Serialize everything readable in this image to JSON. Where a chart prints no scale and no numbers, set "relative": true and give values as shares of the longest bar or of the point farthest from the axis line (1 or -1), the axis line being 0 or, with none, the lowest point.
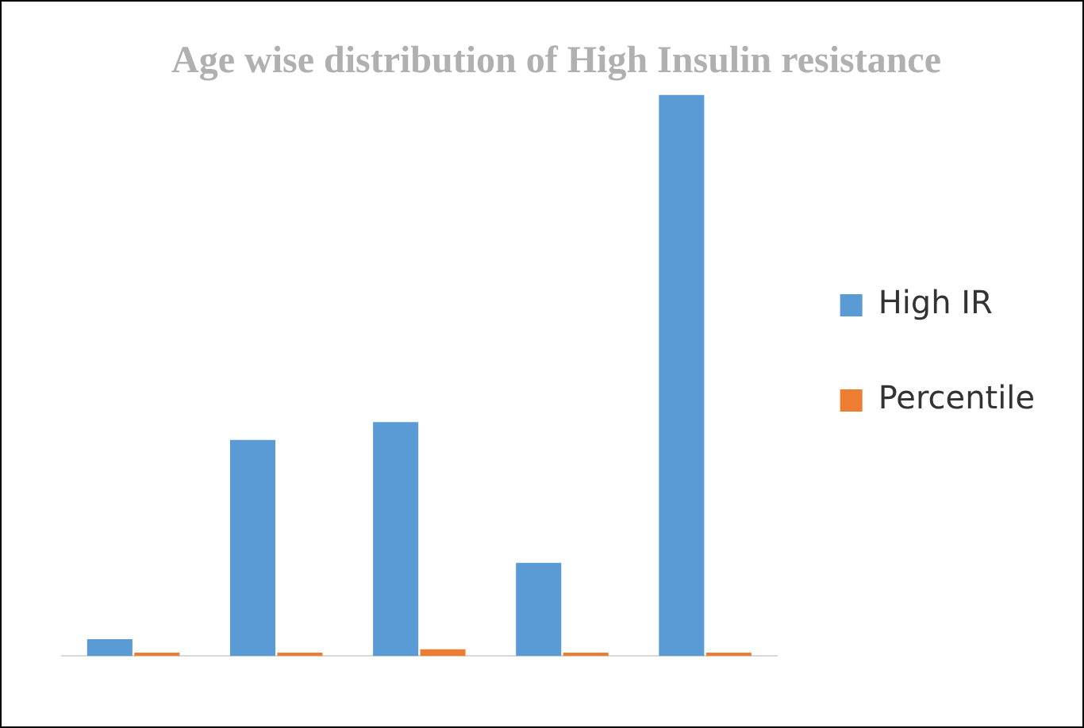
{
  "chart_data": {
    "type": "bar",
    "title": "Age wise distribution of High Insulin resistance",
    "relative": true,
    "categories": [
      null,
      null,
      null,
      null,
      null
    ],
    "series": [
      {
        "name": "High IR",
        "color": "#5b9bd5",
        "values": [
          0.03,
          0.385,
          0.417,
          0.166,
          1
        ]
      },
      {
        "name": "Percentile",
        "color": "#ed7d31",
        "values": [
          0.006,
          0.006,
          0.012,
          0.006,
          0.006
        ]
      }
    ],
    "legend": "right",
    "grid": false
  }
}
